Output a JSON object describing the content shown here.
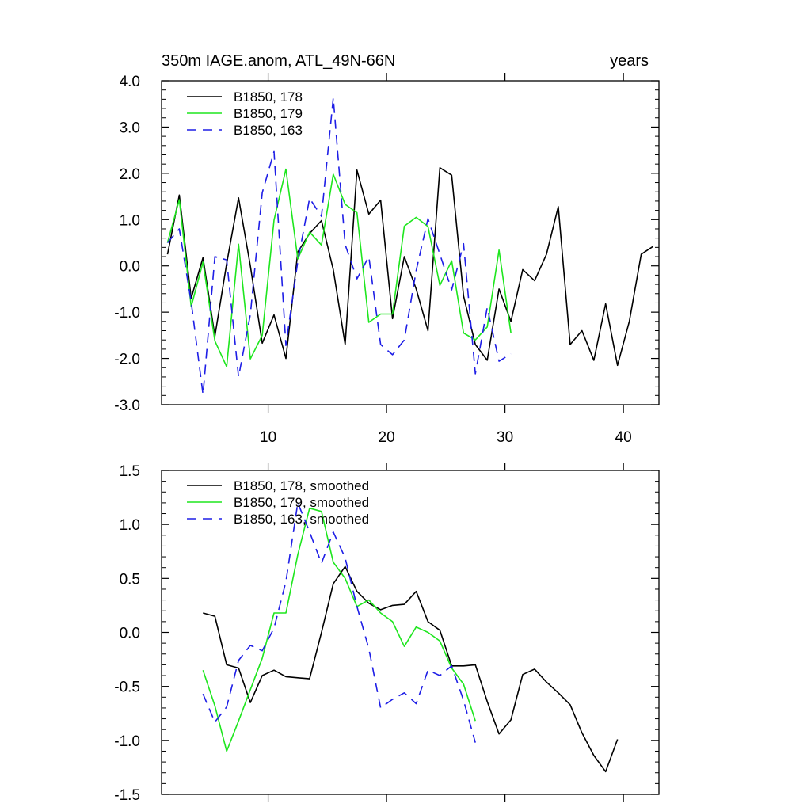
{
  "colors": {
    "series_178": "#000000",
    "series_179": "#1ee61e",
    "series_163": "#1e1ee6",
    "axis": "#000000",
    "background": "#ffffff"
  },
  "chart_data": [
    {
      "type": "line",
      "title": "350m IAGE.anom, ATL_49N-66N",
      "title_right": "years",
      "xlim": [
        1,
        43
      ],
      "ylim": [
        -3.0,
        4.0
      ],
      "x_ticks": [
        10,
        20,
        30,
        40
      ],
      "x_tick_labels": [
        "10",
        "20",
        "30",
        "40"
      ],
      "y_ticks": [
        -3.0,
        -2.0,
        -1.0,
        0.0,
        1.0,
        2.0,
        3.0,
        4.0
      ],
      "y_tick_labels": [
        "-3.0",
        "-2.0",
        "-1.0",
        "0.0",
        "1.0",
        "2.0",
        "3.0",
        "4.0"
      ],
      "grid": false,
      "legend_position": "top-left",
      "series": [
        {
          "name": "B1850, 178",
          "color_key": "series_178",
          "dash": "solid",
          "x": [
            1.5,
            2.5,
            3.5,
            4.5,
            5.5,
            6.5,
            7.5,
            8.5,
            9.5,
            10.5,
            11.5,
            12.5,
            13.5,
            14.5,
            15.5,
            16.5,
            17.5,
            18.5,
            19.5,
            20.5,
            21.5,
            22.5,
            23.5,
            24.5,
            25.5,
            26.5,
            27.5,
            28.5,
            29.5,
            30.5,
            31.5,
            32.5,
            33.5,
            34.5,
            35.5,
            36.5,
            37.5,
            38.5,
            39.5,
            40.5,
            41.5,
            42.5
          ],
          "y": [
            0.25,
            1.53,
            -0.7,
            0.18,
            -1.52,
            0.05,
            1.47,
            0.0,
            -1.67,
            -1.06,
            -2.0,
            0.3,
            0.7,
            0.98,
            -0.08,
            -1.7,
            2.07,
            1.12,
            1.42,
            -1.14,
            0.2,
            -0.5,
            -1.4,
            2.12,
            1.96,
            -0.65,
            -1.7,
            -2.04,
            -0.5,
            -1.2,
            -0.08,
            -0.32,
            0.25,
            1.28,
            -1.7,
            -1.4,
            -2.04,
            -0.82,
            -2.15,
            -1.2,
            0.25,
            0.42
          ]
        },
        {
          "name": "B1850, 179",
          "color_key": "series_179",
          "dash": "solid",
          "x": [
            1.5,
            2.5,
            3.5,
            4.5,
            5.5,
            6.5,
            7.5,
            8.5,
            9.5,
            10.5,
            11.5,
            12.5,
            13.5,
            14.5,
            15.5,
            16.5,
            17.5,
            18.5,
            19.5,
            20.5,
            21.5,
            22.5,
            23.5,
            24.5,
            25.5,
            26.5,
            27.5,
            28.5,
            29.5,
            30.5
          ],
          "y": [
            0.5,
            1.43,
            -0.88,
            0.08,
            -1.62,
            -2.18,
            0.47,
            -2.01,
            -1.5,
            0.99,
            2.09,
            0.15,
            0.73,
            0.45,
            1.98,
            1.33,
            1.15,
            -1.22,
            -1.04,
            -1.04,
            0.86,
            1.05,
            0.85,
            -0.42,
            0.11,
            -1.45,
            -1.6,
            -1.32,
            0.34,
            -1.45
          ]
        },
        {
          "name": "B1850, 163",
          "color_key": "series_163",
          "dash": "dashed",
          "x": [
            1.5,
            2.5,
            3.5,
            4.5,
            5.5,
            6.5,
            7.5,
            8.5,
            9.5,
            10.5,
            11.5,
            12.5,
            13.5,
            14.5,
            15.5,
            16.5,
            17.5,
            18.5,
            19.5,
            20.5,
            21.5,
            22.5,
            23.5,
            24.5,
            25.5,
            26.5,
            27.5,
            28.5,
            29.5,
            30.5
          ],
          "y": [
            0.5,
            0.8,
            -0.78,
            -2.78,
            0.2,
            0.13,
            -2.4,
            -1.05,
            1.58,
            2.47,
            -1.72,
            0.1,
            1.46,
            1.07,
            3.63,
            0.46,
            -0.28,
            0.2,
            -1.7,
            -1.92,
            -1.6,
            -0.1,
            1.02,
            0.25,
            -0.52,
            0.48,
            -2.33,
            -0.9,
            -2.06,
            -1.9
          ]
        }
      ]
    },
    {
      "type": "line",
      "xlim": [
        1,
        43
      ],
      "ylim": [
        -1.5,
        1.5
      ],
      "x_ticks": [
        10,
        20,
        30,
        40
      ],
      "x_tick_labels": [
        "",
        "",
        "",
        ""
      ],
      "y_ticks": [
        -1.5,
        -1.0,
        -0.5,
        0.0,
        0.5,
        1.0,
        1.5
      ],
      "y_tick_labels": [
        "-1.5",
        "-1.0",
        "-0.5",
        "0.0",
        "0.5",
        "1.0",
        "1.5"
      ],
      "grid": false,
      "legend_position": "top-left",
      "series": [
        {
          "name": "B1850, 178, smoothed",
          "color_key": "series_178",
          "dash": "solid",
          "x": [
            4.5,
            5.5,
            6.5,
            7.5,
            8.5,
            9.5,
            10.5,
            11.5,
            12.5,
            13.5,
            14.5,
            15.5,
            16.5,
            17.5,
            18.5,
            19.5,
            20.5,
            21.5,
            22.5,
            23.5,
            24.5,
            25.5,
            26.5,
            27.5,
            28.5,
            29.5,
            30.5,
            31.5,
            32.5,
            33.5,
            34.5,
            35.5,
            36.5,
            37.5,
            38.5,
            39.5
          ],
          "y": [
            0.18,
            0.15,
            -0.3,
            -0.33,
            -0.65,
            -0.4,
            -0.35,
            -0.41,
            -0.42,
            -0.43,
            0.0,
            0.45,
            0.61,
            0.38,
            0.27,
            0.21,
            0.25,
            0.26,
            0.38,
            0.1,
            0.02,
            -0.31,
            -0.31,
            -0.3,
            -0.64,
            -0.94,
            -0.81,
            -0.39,
            -0.34,
            -0.46,
            -0.56,
            -0.67,
            -0.93,
            -1.14,
            -1.29,
            -0.99
          ]
        },
        {
          "name": "B1850, 179, smoothed",
          "color_key": "series_179",
          "dash": "solid",
          "x": [
            4.5,
            5.5,
            6.5,
            7.5,
            8.5,
            9.5,
            10.5,
            11.5,
            12.5,
            13.5,
            14.5,
            15.5,
            16.5,
            17.5,
            18.5,
            19.5,
            20.5,
            21.5,
            22.5,
            23.5,
            24.5,
            25.5,
            26.5,
            27.5
          ],
          "y": [
            -0.35,
            -0.68,
            -1.1,
            -0.82,
            -0.53,
            -0.24,
            0.18,
            0.18,
            0.72,
            1.15,
            1.12,
            0.65,
            0.5,
            0.24,
            0.3,
            0.18,
            0.1,
            -0.13,
            0.05,
            0.0,
            -0.08,
            -0.33,
            -0.48,
            -0.82
          ]
        },
        {
          "name": "B1850, 163, smoothed",
          "color_key": "series_163",
          "dash": "dashed",
          "x": [
            4.5,
            5.5,
            6.5,
            7.5,
            8.5,
            9.5,
            10.5,
            11.5,
            12.5,
            13.5,
            14.5,
            15.5,
            16.5,
            17.5,
            18.5,
            19.5,
            20.5,
            21.5,
            22.5,
            23.5,
            24.5,
            25.5,
            26.5,
            27.5
          ],
          "y": [
            -0.57,
            -0.83,
            -0.69,
            -0.26,
            -0.12,
            -0.17,
            0.04,
            0.47,
            1.2,
            0.93,
            0.64,
            0.93,
            0.69,
            0.24,
            -0.15,
            -0.7,
            -0.62,
            -0.56,
            -0.66,
            -0.35,
            -0.4,
            -0.31,
            -0.63,
            -1.02
          ]
        }
      ]
    }
  ]
}
